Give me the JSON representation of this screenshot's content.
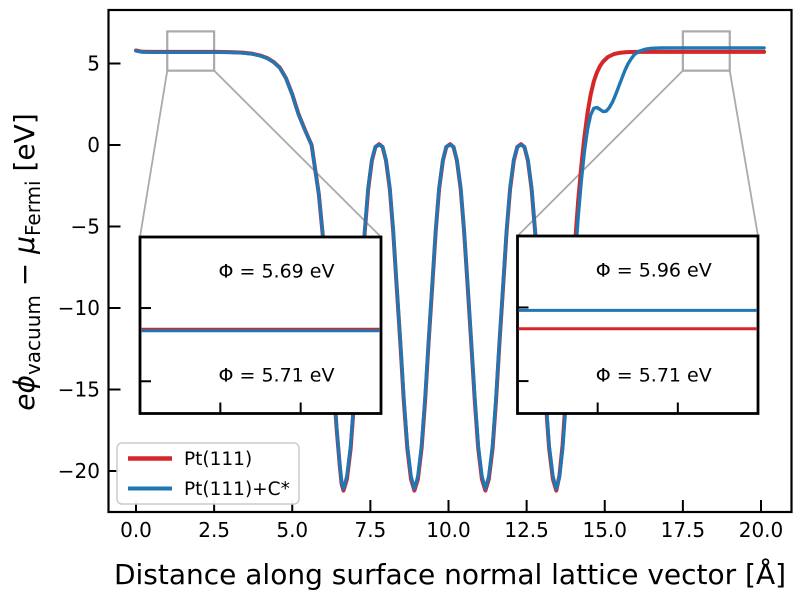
{
  "figure": {
    "xlabel": "Distance along surface normal lattice vector [Å]",
    "ylabel_plain": "eϕ_vacuum − μ_Fermi [eV]",
    "ylabel_parts": [
      {
        "t": "e",
        "italic": true
      },
      {
        "t": "ϕ",
        "italic": true
      },
      {
        "t": "vacuum",
        "sub": true
      },
      {
        "t": " − "
      },
      {
        "t": "μ",
        "italic": true
      },
      {
        "t": "Fermi",
        "sub": true
      },
      {
        "t": " [eV]"
      }
    ]
  },
  "chart_data": {
    "type": "line",
    "title": "",
    "xlabel": "Distance along surface normal lattice vector [Å]",
    "ylabel": "eϕ_vacuum − μ_Fermi [eV]",
    "xlim": [
      -0.9,
      21.0
    ],
    "ylim": [
      -22.5,
      8.3
    ],
    "grid": false,
    "xticks": [
      0,
      2.5,
      5,
      7.5,
      10,
      12.5,
      15,
      17.5,
      20
    ],
    "xtick_labels": [
      "0.0",
      "2.5",
      "5.0",
      "7.5",
      "10.0",
      "12.5",
      "15.0",
      "17.5",
      "20.0"
    ],
    "yticks": [
      5,
      0,
      -5,
      -10,
      -15,
      -20
    ],
    "ytick_labels": [
      "5",
      "0",
      "−5",
      "−10",
      "−15",
      "−20"
    ],
    "legend": {
      "position": "lower left",
      "entries": [
        {
          "label": "Pt(111)",
          "color": "#d62728"
        },
        {
          "label": "Pt(111)+C*",
          "color": "#1f77b4"
        }
      ]
    },
    "series": [
      {
        "name": "Pt(111)",
        "color": "#d62728",
        "linewidth": 4,
        "work_function_left_eV": 5.71,
        "work_function_right_eV": 5.71,
        "points": [
          [
            0,
            5.8
          ],
          [
            0.2,
            5.72
          ],
          [
            0.6,
            5.71
          ],
          [
            1.2,
            5.71
          ],
          [
            2,
            5.71
          ],
          [
            2.6,
            5.71
          ],
          [
            3,
            5.7
          ],
          [
            3.4,
            5.67
          ],
          [
            3.7,
            5.61
          ],
          [
            4,
            5.48
          ],
          [
            4.2,
            5.33
          ],
          [
            4.4,
            5.1
          ],
          [
            4.6,
            4.75
          ],
          [
            4.8,
            4.1
          ],
          [
            5,
            3.1
          ],
          [
            5.2,
            1.9
          ],
          [
            5.4,
            0.95
          ],
          [
            5.62,
            0
          ],
          [
            5.85,
            -3
          ],
          [
            6,
            -6
          ],
          [
            6.15,
            -10
          ],
          [
            6.3,
            -14
          ],
          [
            6.42,
            -17.4
          ],
          [
            6.52,
            -19.7
          ],
          [
            6.58,
            -20.8
          ],
          [
            6.64,
            -21.2
          ],
          [
            6.75,
            -20.5
          ],
          [
            6.87,
            -18.6
          ],
          [
            6.98,
            -15.7
          ],
          [
            7.09,
            -12.2
          ],
          [
            7.21,
            -8.6
          ],
          [
            7.32,
            -5.3
          ],
          [
            7.43,
            -2.7
          ],
          [
            7.55,
            -0.95
          ],
          [
            7.66,
            -0.12
          ],
          [
            7.78,
            0.05
          ],
          [
            7.89,
            -0.12
          ],
          [
            8,
            -0.95
          ],
          [
            8.12,
            -2.7
          ],
          [
            8.23,
            -5.3
          ],
          [
            8.34,
            -8.6
          ],
          [
            8.46,
            -12.2
          ],
          [
            8.57,
            -15.7
          ],
          [
            8.68,
            -18.6
          ],
          [
            8.8,
            -20.5
          ],
          [
            8.91,
            -21.2
          ],
          [
            9.02,
            -20.5
          ],
          [
            9.14,
            -18.6
          ],
          [
            9.25,
            -15.7
          ],
          [
            9.36,
            -12.2
          ],
          [
            9.48,
            -8.6
          ],
          [
            9.59,
            -5.3
          ],
          [
            9.7,
            -2.7
          ],
          [
            9.82,
            -0.95
          ],
          [
            9.93,
            -0.12
          ],
          [
            10.05,
            0.05
          ],
          [
            10.16,
            -0.12
          ],
          [
            10.27,
            -0.95
          ],
          [
            10.39,
            -2.7
          ],
          [
            10.5,
            -5.3
          ],
          [
            10.61,
            -8.6
          ],
          [
            10.73,
            -12.2
          ],
          [
            10.84,
            -15.7
          ],
          [
            10.95,
            -18.6
          ],
          [
            11.07,
            -20.5
          ],
          [
            11.18,
            -21.2
          ],
          [
            11.29,
            -20.5
          ],
          [
            11.41,
            -18.6
          ],
          [
            11.52,
            -15.7
          ],
          [
            11.63,
            -12.2
          ],
          [
            11.75,
            -8.6
          ],
          [
            11.86,
            -5.3
          ],
          [
            11.97,
            -2.7
          ],
          [
            12.09,
            -0.95
          ],
          [
            12.2,
            -0.12
          ],
          [
            12.32,
            0.05
          ],
          [
            12.43,
            -0.12
          ],
          [
            12.54,
            -0.95
          ],
          [
            12.66,
            -2.7
          ],
          [
            12.77,
            -5.3
          ],
          [
            12.88,
            -8.6
          ],
          [
            13,
            -12.2
          ],
          [
            13.11,
            -15.7
          ],
          [
            13.22,
            -18.6
          ],
          [
            13.34,
            -20.5
          ],
          [
            13.45,
            -21.2
          ],
          [
            13.55,
            -20.3
          ],
          [
            13.65,
            -18.4
          ],
          [
            13.75,
            -15.6
          ],
          [
            13.85,
            -12.3
          ],
          [
            13.95,
            -9
          ],
          [
            14.05,
            -6
          ],
          [
            14.15,
            -3.4
          ],
          [
            14.25,
            -1.3
          ],
          [
            14.35,
            0.5
          ],
          [
            14.45,
            2
          ],
          [
            14.55,
            3.1
          ],
          [
            14.65,
            3.9
          ],
          [
            14.75,
            4.45
          ],
          [
            14.85,
            4.85
          ],
          [
            14.95,
            5.12
          ],
          [
            15.1,
            5.4
          ],
          [
            15.3,
            5.58
          ],
          [
            15.5,
            5.66
          ],
          [
            15.7,
            5.7
          ],
          [
            16,
            5.71
          ],
          [
            17,
            5.71
          ],
          [
            18,
            5.71
          ],
          [
            19,
            5.71
          ],
          [
            20.1,
            5.71
          ]
        ]
      },
      {
        "name": "Pt(111)+C*",
        "color": "#1f77b4",
        "linewidth": 3.4,
        "work_function_left_eV": 5.69,
        "work_function_right_eV": 5.96,
        "points": [
          [
            0,
            5.78
          ],
          [
            0.2,
            5.7
          ],
          [
            0.6,
            5.69
          ],
          [
            1.2,
            5.69
          ],
          [
            2,
            5.69
          ],
          [
            2.6,
            5.69
          ],
          [
            3,
            5.68
          ],
          [
            3.4,
            5.65
          ],
          [
            3.7,
            5.59
          ],
          [
            4,
            5.46
          ],
          [
            4.2,
            5.31
          ],
          [
            4.4,
            5.08
          ],
          [
            4.6,
            4.73
          ],
          [
            4.8,
            4.08
          ],
          [
            5,
            3.08
          ],
          [
            5.2,
            1.88
          ],
          [
            5.4,
            0.93
          ],
          [
            5.62,
            -0.02
          ],
          [
            5.85,
            -3
          ],
          [
            6,
            -5.95
          ],
          [
            6.15,
            -9.9
          ],
          [
            6.3,
            -13.9
          ],
          [
            6.42,
            -17.3
          ],
          [
            6.52,
            -19.6
          ],
          [
            6.58,
            -20.7
          ],
          [
            6.64,
            -21.1
          ],
          [
            6.75,
            -20.3
          ],
          [
            6.87,
            -18.4
          ],
          [
            6.98,
            -15.5
          ],
          [
            7.09,
            -12.1
          ],
          [
            7.21,
            -8.5
          ],
          [
            7.32,
            -5.2
          ],
          [
            7.43,
            -2.6
          ],
          [
            7.55,
            -0.9
          ],
          [
            7.66,
            -0.1
          ],
          [
            7.78,
            0
          ],
          [
            7.89,
            -0.1
          ],
          [
            8,
            -0.9
          ],
          [
            8.12,
            -2.6
          ],
          [
            8.23,
            -5.2
          ],
          [
            8.34,
            -8.5
          ],
          [
            8.46,
            -12.1
          ],
          [
            8.57,
            -15.5
          ],
          [
            8.68,
            -18.4
          ],
          [
            8.8,
            -20.3
          ],
          [
            8.91,
            -21.1
          ],
          [
            9.02,
            -20.3
          ],
          [
            9.14,
            -18.4
          ],
          [
            9.25,
            -15.5
          ],
          [
            9.36,
            -12.1
          ],
          [
            9.48,
            -8.5
          ],
          [
            9.59,
            -5.2
          ],
          [
            9.7,
            -2.6
          ],
          [
            9.82,
            -0.9
          ],
          [
            9.93,
            -0.1
          ],
          [
            10.05,
            0
          ],
          [
            10.16,
            -0.1
          ],
          [
            10.27,
            -0.9
          ],
          [
            10.39,
            -2.6
          ],
          [
            10.5,
            -5.2
          ],
          [
            10.61,
            -8.5
          ],
          [
            10.73,
            -12.1
          ],
          [
            10.84,
            -15.5
          ],
          [
            10.95,
            -18.4
          ],
          [
            11.07,
            -20.3
          ],
          [
            11.18,
            -21.1
          ],
          [
            11.29,
            -20.3
          ],
          [
            11.41,
            -18.4
          ],
          [
            11.52,
            -15.5
          ],
          [
            11.63,
            -12.1
          ],
          [
            11.75,
            -8.5
          ],
          [
            11.86,
            -5.2
          ],
          [
            11.97,
            -2.6
          ],
          [
            12.09,
            -0.9
          ],
          [
            12.2,
            -0.1
          ],
          [
            12.32,
            0
          ],
          [
            12.43,
            -0.1
          ],
          [
            12.54,
            -0.9
          ],
          [
            12.66,
            -2.6
          ],
          [
            12.77,
            -5.2
          ],
          [
            12.88,
            -8.5
          ],
          [
            13,
            -12.1
          ],
          [
            13.11,
            -15.5
          ],
          [
            13.22,
            -18.4
          ],
          [
            13.34,
            -20.3
          ],
          [
            13.45,
            -21.1
          ],
          [
            13.55,
            -20.4
          ],
          [
            13.65,
            -18.7
          ],
          [
            13.75,
            -16.1
          ],
          [
            13.85,
            -13.1
          ],
          [
            13.95,
            -10
          ],
          [
            14.05,
            -7
          ],
          [
            14.15,
            -4.4
          ],
          [
            14.25,
            -2.2
          ],
          [
            14.35,
            -0.4
          ],
          [
            14.45,
            1
          ],
          [
            14.55,
            1.85
          ],
          [
            14.65,
            2.25
          ],
          [
            14.75,
            2.3
          ],
          [
            14.85,
            2.18
          ],
          [
            14.95,
            2.05
          ],
          [
            15.05,
            2.08
          ],
          [
            15.15,
            2.3
          ],
          [
            15.25,
            2.65
          ],
          [
            15.35,
            3.1
          ],
          [
            15.45,
            3.6
          ],
          [
            15.55,
            4.1
          ],
          [
            15.65,
            4.6
          ],
          [
            15.75,
            5
          ],
          [
            15.85,
            5.3
          ],
          [
            15.95,
            5.55
          ],
          [
            16.1,
            5.75
          ],
          [
            16.3,
            5.88
          ],
          [
            16.5,
            5.93
          ],
          [
            16.8,
            5.95
          ],
          [
            17.2,
            5.96
          ],
          [
            18,
            5.96
          ],
          [
            19,
            5.96
          ],
          [
            20.1,
            5.96
          ]
        ]
      }
    ],
    "insets": [
      {
        "side": "left",
        "zoom_region_x": [
          1.0,
          2.5
        ],
        "zoom_region_y": [
          4.56,
          6.97
        ],
        "xticks": [
          1.5,
          2.0
        ],
        "yticks": [
          6,
          5
        ],
        "labels": [
          {
            "text": "Φ = 5.69 eV",
            "color": "#1f77b4",
            "slot": "top"
          },
          {
            "text": "Φ = 5.71 eV",
            "color": "#d62728",
            "slot": "bottom"
          }
        ],
        "lines": [
          {
            "value": 5.71,
            "color": "#d62728"
          },
          {
            "value": 5.69,
            "color": "#1f77b4"
          }
        ]
      },
      {
        "side": "right",
        "zoom_region_x": [
          17.5,
          19.0
        ],
        "zoom_region_y": [
          4.56,
          6.97
        ],
        "xticks": [
          18.0,
          18.5
        ],
        "yticks": [
          6,
          5
        ],
        "labels": [
          {
            "text": "Φ = 5.96 eV",
            "color": "#1f77b4",
            "slot": "top"
          },
          {
            "text": "Φ = 5.71 eV",
            "color": "#d62728",
            "slot": "bottom"
          }
        ],
        "lines": [
          {
            "value": 5.96,
            "color": "#1f77b4"
          },
          {
            "value": 5.71,
            "color": "#d62728"
          }
        ]
      }
    ],
    "colors": {
      "red": "#d62728",
      "blue": "#1f77b4",
      "indicator_gray": "#aaaaaa",
      "legend_border": "#cccccc",
      "axes": "#000000"
    }
  }
}
